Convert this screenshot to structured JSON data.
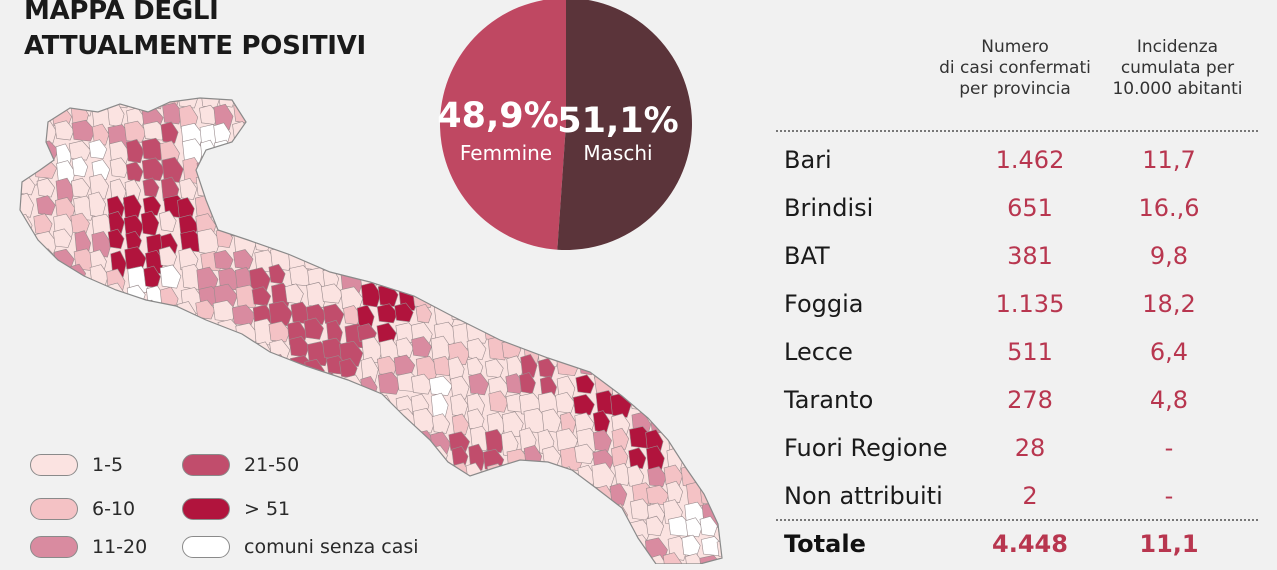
{
  "title": {
    "line1": "MAPPA DEGLI",
    "line2": "ATTUALMENTE POSITIVI"
  },
  "colors": {
    "background": "#f1f1f1",
    "class_1_5": "#fbe3e1",
    "class_6_10": "#f4c2c5",
    "class_11_20": "#d98ba0",
    "class_21_50": "#c14d6c",
    "class_51_plus": "#b1143d",
    "no_cases": "#ffffff",
    "femmine": "#bf4862",
    "maschi": "#5b343a",
    "accent_text": "#b8364f"
  },
  "legend": [
    {
      "label": "1-5",
      "color": "#fbe3e1"
    },
    {
      "label": "6-10",
      "color": "#f4c2c5"
    },
    {
      "label": "11-20",
      "color": "#d98ba0"
    },
    {
      "label": "21-50",
      "color": "#c14d6c"
    },
    {
      "label": "> 51",
      "color": "#b1143d"
    },
    {
      "label": "comuni senza casi",
      "color": "#ffffff"
    }
  ],
  "chart_data": [
    {
      "type": "pie",
      "categories": [
        "Femmine",
        "Maschi"
      ],
      "values": [
        48.9,
        51.1
      ],
      "value_labels": [
        "48,9%",
        "51,1%"
      ],
      "colors": [
        "#bf4862",
        "#5b343a"
      ]
    },
    {
      "type": "table",
      "columns": [
        "",
        "Numero\ndi casi confermati\nper provincia",
        "Incidenza\ncumulata per\n10.000 abitanti"
      ],
      "rows": [
        {
          "provincia": "Bari",
          "casi": "1.462",
          "incidenza": "11,7"
        },
        {
          "provincia": "Brindisi",
          "casi": "651",
          "incidenza": "16.,6"
        },
        {
          "provincia": "BAT",
          "casi": "381",
          "incidenza": "9,8"
        },
        {
          "provincia": "Foggia",
          "casi": "1.135",
          "incidenza": "18,2"
        },
        {
          "provincia": "Lecce",
          "casi": "511",
          "incidenza": "6,4"
        },
        {
          "provincia": "Taranto",
          "casi": "278",
          "incidenza": "4,8"
        },
        {
          "provincia": "Fuori Regione",
          "casi": "28",
          "incidenza": "-"
        },
        {
          "provincia": "Non attribuiti",
          "casi": "2",
          "incidenza": "-"
        }
      ],
      "total": {
        "provincia": "Totale",
        "casi": "4.448",
        "incidenza": "11,1"
      }
    }
  ]
}
